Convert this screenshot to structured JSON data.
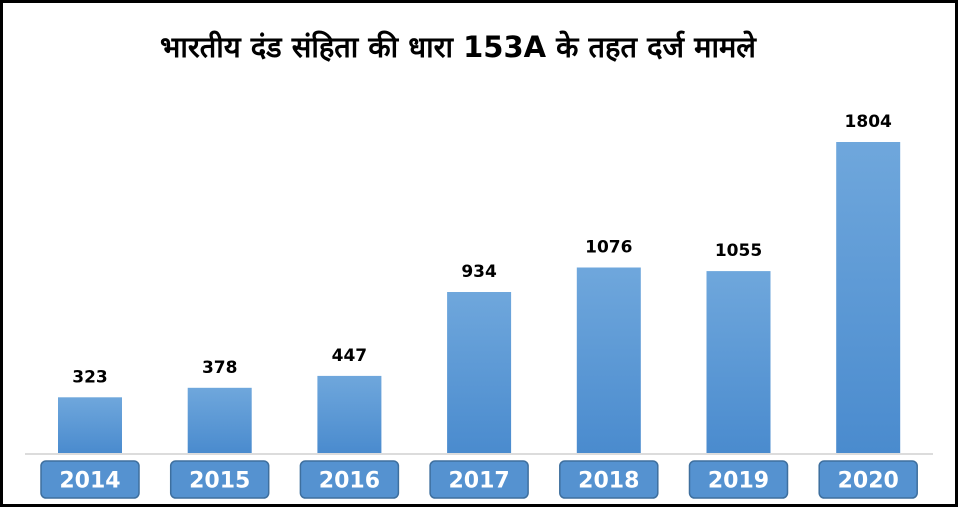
{
  "chart_data": {
    "type": "bar",
    "title": "भारतीय दंड संहिता की धारा 153A के तहत दर्ज मामले",
    "categories": [
      "2014",
      "2015",
      "2016",
      "2017",
      "2018",
      "2019",
      "2020"
    ],
    "values": [
      323,
      378,
      447,
      934,
      1076,
      1055,
      1804
    ],
    "data_labels": [
      "323",
      "378",
      "447",
      "934",
      "1076",
      "1055",
      "1804"
    ],
    "ylim": [
      0,
      1804
    ],
    "xlabel": "",
    "ylabel": "",
    "grid": false,
    "legend": "none",
    "colors": {
      "bar_top": "#6fa7dc",
      "bar_bottom": "#4a8bce",
      "category_box": "#5592d0",
      "category_box_border": "#3e6f9e",
      "baseline": "#d0d0d0"
    }
  }
}
